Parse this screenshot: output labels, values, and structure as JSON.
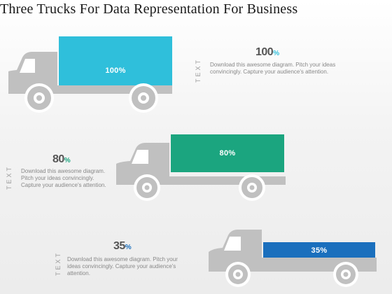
{
  "title": "Three Trucks For Data Representation For Business",
  "colors": {
    "truck": "#c0c0c0",
    "truck_dark": "#aaaaaa",
    "wheel_center": "#dadada",
    "blue_light": "#2fbfdb",
    "green": "#1ba57f",
    "blue_dark": "#1a6fbd"
  },
  "items": [
    {
      "cargo_label": "100%",
      "percent_number": "100",
      "percent_symbol": "%",
      "side_label": "TEXT",
      "description": "Download this awesome diagram. Pitch your ideas convincingly. Capture your audience's attention.",
      "color": "#2fbfdb",
      "value": 100
    },
    {
      "cargo_label": "80%",
      "percent_number": "80",
      "percent_symbol": "%",
      "side_label": "TEXT",
      "description": "Download this awesome diagram. Pitch your ideas convincingly. Capture your audience's attention.",
      "color": "#1ba57f",
      "value": 80
    },
    {
      "cargo_label": "35%",
      "percent_number": "35",
      "percent_symbol": "%",
      "side_label": "TEXT",
      "description": "Download this awesome diagram. Pitch your ideas convincingly. Capture your audience's attention.",
      "color": "#1a6fbd",
      "value": 35
    }
  ]
}
